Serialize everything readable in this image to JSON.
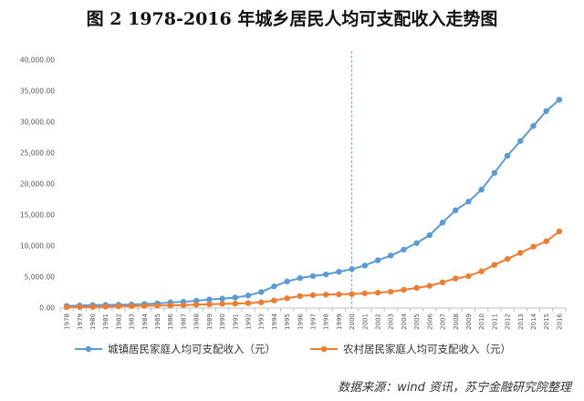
{
  "chart_data": {
    "type": "line",
    "title": "图 2 1978-2016 年城乡居民人均可支配收入走势图",
    "source": "数据来源：wind 资讯，苏宁金融研究院整理",
    "ylim": [
      0,
      40000
    ],
    "y_ticks": [
      "0.00",
      "5,000.00",
      "10,000.00",
      "15,000.00",
      "20,000.00",
      "25,000.00",
      "30,000.00",
      "35,000.00",
      "40,000.00"
    ],
    "y_tick_values": [
      0,
      5000,
      10000,
      15000,
      20000,
      25000,
      30000,
      35000,
      40000
    ],
    "grid": false,
    "legend_position": "bottom",
    "reference_line_x": "2000",
    "colors": {
      "urban": "#5b9bd5",
      "rural": "#ed7d31",
      "refline": "#5b9bd5"
    },
    "categories": [
      "1978",
      "1979",
      "1980",
      "1981",
      "1982",
      "1983",
      "1984",
      "1985",
      "1986",
      "1987",
      "1988",
      "1989",
      "1990",
      "1991",
      "1992",
      "1993",
      "1994",
      "1995",
      "1996",
      "1997",
      "1998",
      "1999",
      "2000",
      "2001",
      "2002",
      "2003",
      "2004",
      "2005",
      "2006",
      "2007",
      "2008",
      "2009",
      "2010",
      "2011",
      "2012",
      "2013",
      "2014",
      "2015",
      "2016"
    ],
    "series": [
      {
        "name": "城镇居民家庭人均可支配收入（元）",
        "values": [
          343,
          405,
          478,
          500,
          535,
          565,
          652,
          739,
          900,
          1002,
          1180,
          1374,
          1510,
          1701,
          2027,
          2577,
          3496,
          4283,
          4839,
          5160,
          5425,
          5854,
          6280,
          6860,
          7703,
          8472,
          9422,
          10493,
          11759,
          13786,
          15781,
          17175,
          19109,
          21810,
          24565,
          26955,
          29381,
          31790,
          33616
        ]
      },
      {
        "name": "农村居民家庭人均可支配收入（元）",
        "values": [
          134,
          160,
          191,
          223,
          270,
          310,
          355,
          398,
          424,
          463,
          545,
          602,
          686,
          709,
          784,
          922,
          1221,
          1578,
          1926,
          2090,
          2162,
          2210,
          2253,
          2366,
          2476,
          2622,
          2936,
          3255,
          3587,
          4140,
          4761,
          5153,
          5919,
          6977,
          7917,
          8896,
          9892,
          10772,
          12363
        ]
      }
    ]
  }
}
